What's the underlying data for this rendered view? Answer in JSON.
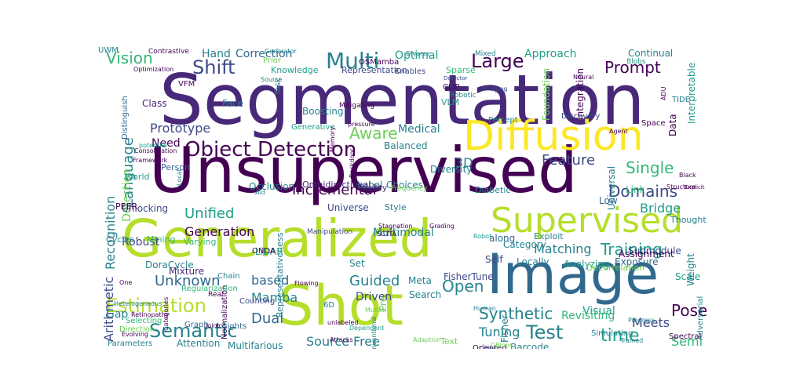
{
  "cloud": {
    "colors": {
      "dark_purple": "#440154",
      "purple": "#482878",
      "indigo": "#3e4989",
      "blue": "#31688e",
      "teal": "#26828e",
      "green_teal": "#1f9e89",
      "green": "#35b779",
      "light_green": "#6ece58",
      "lime": "#b5de2b",
      "yellow": "#fde725"
    },
    "words": [
      {
        "text": "Segmentation"
      },
      {
        "text": "Unsupervised"
      },
      {
        "text": "Generalized"
      },
      {
        "text": "Image"
      },
      {
        "text": "Shot"
      },
      {
        "text": "Diffusion"
      },
      {
        "text": "Supervised"
      },
      {
        "text": "Object Detection"
      },
      {
        "text": "Semantic"
      },
      {
        "text": "Estimation"
      },
      {
        "text": "Multi"
      },
      {
        "text": "Large"
      },
      {
        "text": "Shift"
      },
      {
        "text": "Prompt"
      },
      {
        "text": "Vision"
      },
      {
        "text": "Language"
      },
      {
        "text": "Recognition"
      },
      {
        "text": "Arithmetic"
      },
      {
        "text": "Aware"
      },
      {
        "text": "Prototype"
      },
      {
        "text": "Incremental"
      },
      {
        "text": "Unified"
      },
      {
        "text": "Generation"
      },
      {
        "text": "Domains"
      },
      {
        "text": "Single"
      },
      {
        "text": "Bridge"
      },
      {
        "text": "Feature"
      },
      {
        "text": "Training"
      },
      {
        "text": "Matching"
      },
      {
        "text": "Guided"
      },
      {
        "text": "Unknown"
      },
      {
        "text": "based"
      },
      {
        "text": "Open"
      },
      {
        "text": "Synthetic"
      },
      {
        "text": "Test"
      },
      {
        "text": "time"
      },
      {
        "text": "Tuning"
      },
      {
        "text": "Source Free"
      },
      {
        "text": "Dual"
      },
      {
        "text": "Pose"
      },
      {
        "text": "Meets"
      },
      {
        "text": "Semi"
      },
      {
        "text": "Mamba"
      },
      {
        "text": "Driven"
      },
      {
        "text": "Multimodal"
      },
      {
        "text": "3D"
      },
      {
        "text": "Robust"
      },
      {
        "text": "Hand"
      },
      {
        "text": "Correction"
      },
      {
        "text": "Optimal"
      },
      {
        "text": "Approach"
      },
      {
        "text": "Continual"
      },
      {
        "text": "Integration"
      },
      {
        "text": "Interpretable"
      },
      {
        "text": "Foundation"
      },
      {
        "text": "Medical"
      },
      {
        "text": "Need"
      },
      {
        "text": "Knowledge"
      },
      {
        "text": "Representation"
      },
      {
        "text": "Sparse"
      },
      {
        "text": "Face"
      },
      {
        "text": "Class"
      },
      {
        "text": "Detection"
      },
      {
        "text": "Gap"
      },
      {
        "text": "Attention"
      },
      {
        "text": "Scale"
      },
      {
        "text": "Visual"
      },
      {
        "text": "Universal"
      },
      {
        "text": "Low"
      },
      {
        "text": "Revisiting"
      },
      {
        "text": "Self"
      },
      {
        "text": "Adversarial"
      },
      {
        "text": "Weight"
      },
      {
        "text": "Spectral"
      },
      {
        "text": "Data"
      },
      {
        "text": "Space"
      },
      {
        "text": "Label"
      },
      {
        "text": "Balanced"
      },
      {
        "text": "Boosting"
      },
      {
        "text": "Generative"
      },
      {
        "text": "Occlusion"
      },
      {
        "text": "Person"
      },
      {
        "text": "Omnidirectional"
      },
      {
        "text": "Choices"
      },
      {
        "text": "Diversity"
      },
      {
        "text": "Theory"
      },
      {
        "text": "Style"
      },
      {
        "text": "Universe"
      },
      {
        "text": "Varying"
      },
      {
        "text": "Representativeness"
      },
      {
        "text": "Mining"
      },
      {
        "text": "Cycles"
      },
      {
        "text": "Unlocking"
      },
      {
        "text": "Distinguish"
      },
      {
        "text": "Mixture"
      },
      {
        "text": "DoraCycle"
      },
      {
        "text": "Parameters"
      },
      {
        "text": "Graph"
      },
      {
        "text": "Insights"
      },
      {
        "text": "Multifarious"
      },
      {
        "text": "Counting"
      },
      {
        "text": "LiDAR"
      },
      {
        "text": "Chain"
      },
      {
        "text": "ONDA"
      },
      {
        "text": "Set"
      },
      {
        "text": "Meta"
      },
      {
        "text": "FisherTune"
      },
      {
        "text": "Fisher"
      },
      {
        "text": "Pre"
      },
      {
        "text": "Search"
      },
      {
        "text": "Barcode"
      },
      {
        "text": "Exposure"
      },
      {
        "text": "Analyzing"
      },
      {
        "text": "Submodule"
      },
      {
        "text": "Assignment"
      },
      {
        "text": "Locally"
      },
      {
        "text": "Category"
      },
      {
        "text": "along"
      },
      {
        "text": "Exploit"
      },
      {
        "text": "Thought"
      },
      {
        "text": "Link"
      },
      {
        "text": "Discovery"
      },
      {
        "text": "TIDE"
      },
      {
        "text": "Neural"
      },
      {
        "text": "Mitigating"
      },
      {
        "text": "Percept"
      },
      {
        "text": "VLM"
      },
      {
        "text": "CLIP"
      },
      {
        "text": "Enables"
      },
      {
        "text": "Diverse"
      },
      {
        "text": "Mixed"
      },
      {
        "text": "Detector"
      },
      {
        "text": "Robotic"
      },
      {
        "text": "VFM"
      },
      {
        "text": "Task"
      },
      {
        "text": "Prior"
      },
      {
        "text": "Contrastive"
      },
      {
        "text": "Generator"
      },
      {
        "text": "Optimization"
      },
      {
        "text": "Blobs"
      },
      {
        "text": "OSMamba"
      },
      {
        "text": "pressure"
      },
      {
        "text": "Decorrelation"
      },
      {
        "text": "Text"
      },
      {
        "text": "Oriented"
      },
      {
        "text": "Object"
      },
      {
        "text": "Progress"
      },
      {
        "text": "Trained"
      },
      {
        "text": "Normalization"
      },
      {
        "text": "Real"
      },
      {
        "text": "Regularization"
      },
      {
        "text": "Selecting"
      },
      {
        "text": "Direction"
      },
      {
        "text": "Evolving"
      },
      {
        "text": "unlabeled"
      },
      {
        "text": "Attacks"
      },
      {
        "text": "Adaption"
      },
      {
        "text": "GBlobs"
      },
      {
        "text": "Simulating"
      },
      {
        "text": "6D"
      },
      {
        "text": "Conventional"
      },
      {
        "text": "Dependent"
      },
      {
        "text": "Mutual"
      },
      {
        "text": "Flowing"
      },
      {
        "text": "Categories"
      },
      {
        "text": "Manipulation"
      },
      {
        "text": "SCTTA"
      },
      {
        "text": "Stagnation"
      },
      {
        "text": "Grading"
      },
      {
        "text": "Robot"
      },
      {
        "text": "Diabetic"
      },
      {
        "text": "Structure"
      },
      {
        "text": "Black"
      },
      {
        "text": "Explicit"
      },
      {
        "text": "potential"
      },
      {
        "text": "Consolidation"
      },
      {
        "text": "Framework"
      },
      {
        "text": "World"
      },
      {
        "text": "PEER"
      },
      {
        "text": "One"
      },
      {
        "text": "Heterogeneous"
      },
      {
        "text": "Retinopathy"
      },
      {
        "text": "Joint"
      },
      {
        "text": "Human"
      },
      {
        "text": "Local"
      },
      {
        "text": "Backdoor"
      },
      {
        "text": "Memory"
      },
      {
        "text": "Imaging"
      },
      {
        "text": "ADU"
      },
      {
        "text": "Agent"
      },
      {
        "text": "Frequency"
      },
      {
        "text": "Source"
      },
      {
        "text": "Aid"
      },
      {
        "text": "UWM"
      }
    ]
  }
}
